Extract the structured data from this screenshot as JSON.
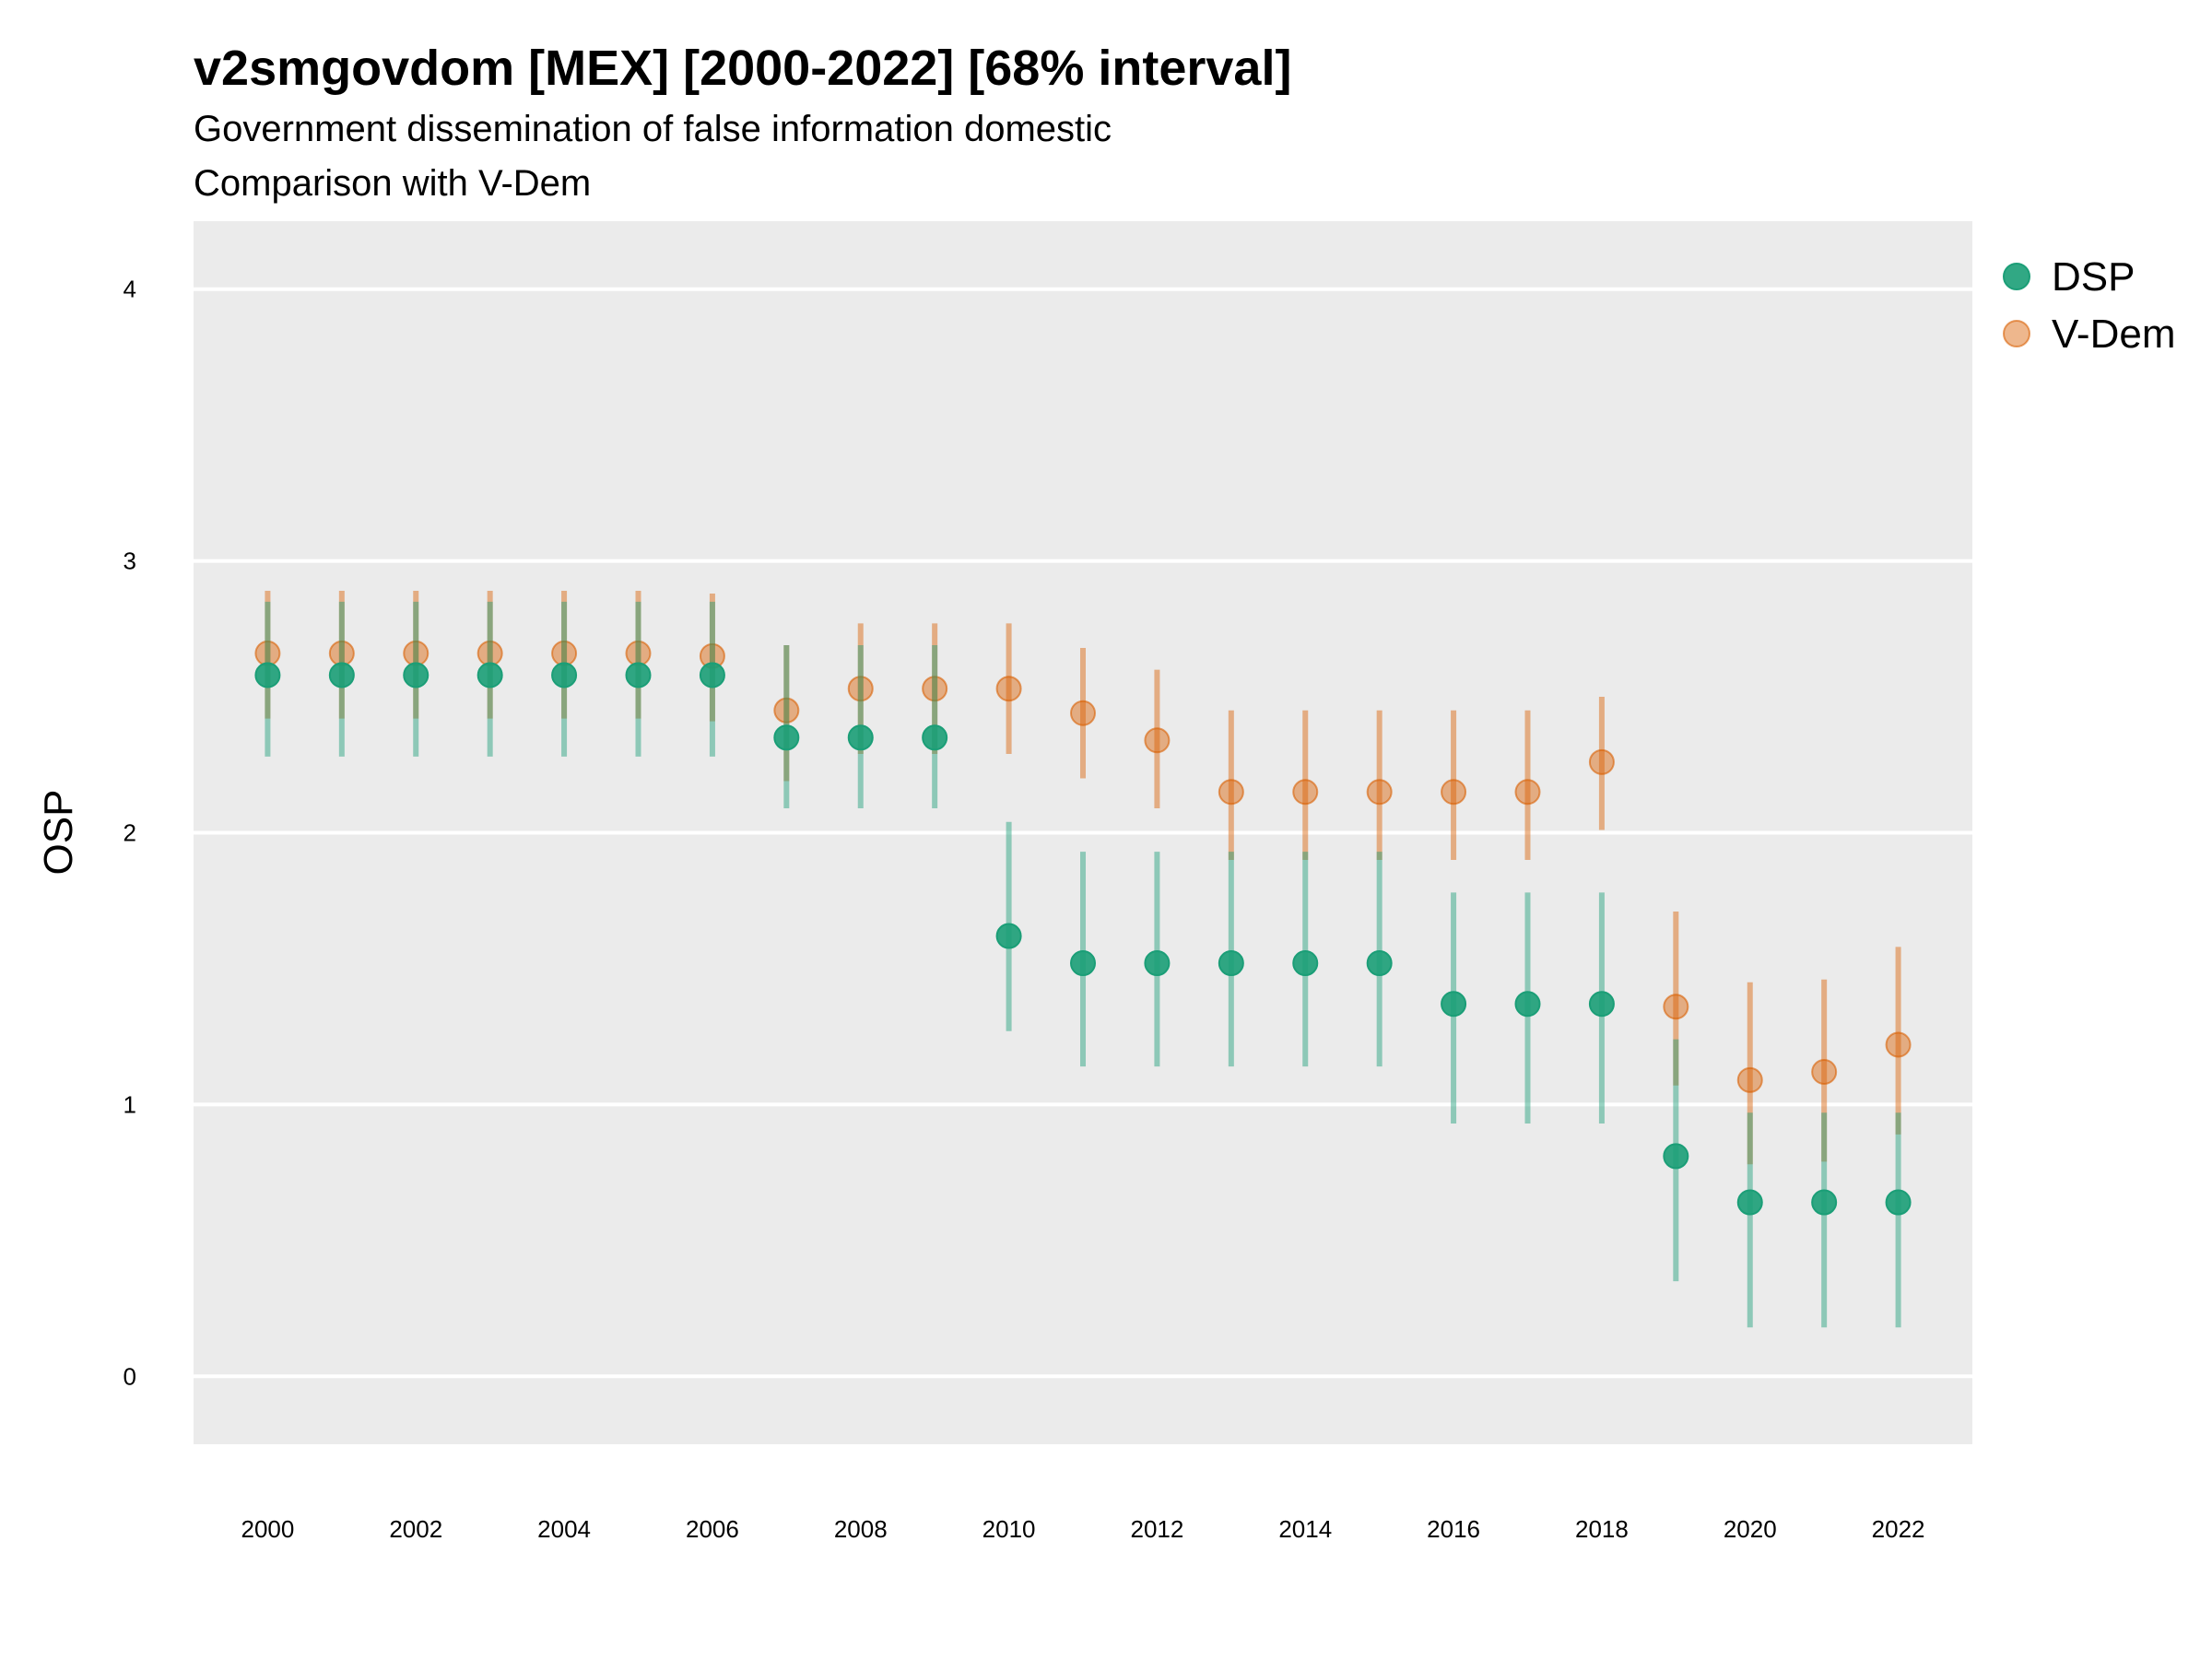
{
  "chart_data": {
    "type": "scatter",
    "title": "v2smgovdom [MEX] [2000-2022] [68% interval]",
    "subtitle_lines": [
      "Government dissemination of false information domestic",
      "Comparison with V-Dem"
    ],
    "ylabel": "OSP",
    "xlabel": "",
    "x_tick_labels": [
      "2000",
      "2002",
      "2004",
      "2006",
      "2008",
      "2010",
      "2012",
      "2014",
      "2016",
      "2018",
      "2020",
      "2022"
    ],
    "y_tick_labels": [
      "0",
      "1",
      "2",
      "3",
      "4"
    ],
    "ylim": [
      -0.25,
      4.25
    ],
    "xlim": [
      1999,
      2023
    ],
    "grid": true,
    "legend_position": "right",
    "x": [
      2000,
      2001,
      2002,
      2003,
      2004,
      2005,
      2006,
      2007,
      2008,
      2009,
      2010,
      2011,
      2012,
      2013,
      2014,
      2015,
      2016,
      2017,
      2018,
      2019,
      2020,
      2021,
      2022
    ],
    "series": [
      {
        "name": "DSP",
        "color": "#1b9e77",
        "values": [
          2.58,
          2.58,
          2.58,
          2.58,
          2.58,
          2.58,
          2.58,
          2.35,
          2.35,
          2.35,
          1.62,
          1.52,
          1.52,
          1.52,
          1.52,
          1.52,
          1.37,
          1.37,
          1.37,
          0.81,
          0.64,
          0.64,
          0.64
        ],
        "lower": [
          2.28,
          2.28,
          2.28,
          2.28,
          2.28,
          2.28,
          2.28,
          2.09,
          2.09,
          2.09,
          1.27,
          1.14,
          1.14,
          1.14,
          1.14,
          1.14,
          0.93,
          0.93,
          0.93,
          0.35,
          0.18,
          0.18,
          0.18
        ],
        "upper": [
          2.85,
          2.85,
          2.85,
          2.85,
          2.85,
          2.85,
          2.85,
          2.69,
          2.69,
          2.69,
          2.04,
          1.93,
          1.93,
          1.93,
          1.93,
          1.93,
          1.78,
          1.78,
          1.78,
          1.24,
          0.97,
          0.97,
          0.97
        ]
      },
      {
        "name": "V-Dem",
        "color": "#d95f02",
        "values": [
          2.66,
          2.66,
          2.66,
          2.66,
          2.66,
          2.66,
          2.65,
          2.45,
          2.53,
          2.53,
          2.53,
          2.44,
          2.34,
          2.15,
          2.15,
          2.15,
          2.15,
          2.15,
          2.26,
          1.36,
          1.09,
          1.12,
          1.22
        ],
        "lower": [
          2.42,
          2.42,
          2.42,
          2.42,
          2.42,
          2.42,
          2.41,
          2.19,
          2.29,
          2.29,
          2.29,
          2.2,
          2.09,
          1.9,
          1.9,
          1.9,
          1.9,
          1.9,
          2.01,
          1.07,
          0.78,
          0.79,
          0.89
        ],
        "upper": [
          2.89,
          2.89,
          2.89,
          2.89,
          2.89,
          2.89,
          2.88,
          2.69,
          2.77,
          2.77,
          2.77,
          2.68,
          2.6,
          2.45,
          2.45,
          2.45,
          2.45,
          2.45,
          2.5,
          1.71,
          1.45,
          1.46,
          1.58
        ]
      }
    ]
  }
}
